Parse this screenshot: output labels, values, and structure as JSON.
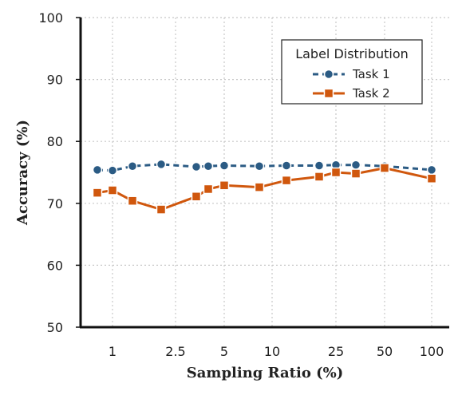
{
  "chart_data": {
    "type": "line",
    "xlabel": "Sampling Ratio (%)",
    "ylabel": "Accuracy (%)",
    "ylim": [
      50,
      100
    ],
    "x_scale": "categorical-log",
    "x_ticks": [
      "1",
      "2.5",
      "5",
      "10",
      "25",
      "50",
      "100"
    ],
    "y_ticks": [
      "50",
      "60",
      "70",
      "80",
      "90",
      "100"
    ],
    "grid": true,
    "legend": {
      "title": "Label Distribution",
      "placement": "top-right"
    },
    "series": [
      {
        "name": "Task 1",
        "color": "#2b5b84",
        "marker": "circle",
        "points": [
          {
            "x": 0.8,
            "y": 75.4
          },
          {
            "x": 1,
            "y": 75.3
          },
          {
            "x": 1.5,
            "y": 76.0
          },
          {
            "x": 2,
            "y": 76.3
          },
          {
            "x": 3.5,
            "y": 75.9
          },
          {
            "x": 4,
            "y": 76.0
          },
          {
            "x": 5,
            "y": 76.1
          },
          {
            "x": 8,
            "y": 76.0
          },
          {
            "x": 15,
            "y": 76.1
          },
          {
            "x": 20,
            "y": 76.1
          },
          {
            "x": 25,
            "y": 76.2
          },
          {
            "x": 35,
            "y": 76.2
          },
          {
            "x": 50,
            "y": 76.0
          },
          {
            "x": 100,
            "y": 75.4
          }
        ]
      },
      {
        "name": "Task 2",
        "color": "#d0570d",
        "marker": "square",
        "points": [
          {
            "x": 0.8,
            "y": 71.7
          },
          {
            "x": 1,
            "y": 72.1
          },
          {
            "x": 1.5,
            "y": 70.4
          },
          {
            "x": 2,
            "y": 69.0
          },
          {
            "x": 3.5,
            "y": 71.1
          },
          {
            "x": 4,
            "y": 72.3
          },
          {
            "x": 5,
            "y": 72.9
          },
          {
            "x": 8,
            "y": 72.6
          },
          {
            "x": 15,
            "y": 73.7
          },
          {
            "x": 20,
            "y": 74.3
          },
          {
            "x": 25,
            "y": 75.0
          },
          {
            "x": 35,
            "y": 74.8
          },
          {
            "x": 50,
            "y": 75.7
          },
          {
            "x": 100,
            "y": 74.0
          }
        ]
      }
    ]
  }
}
